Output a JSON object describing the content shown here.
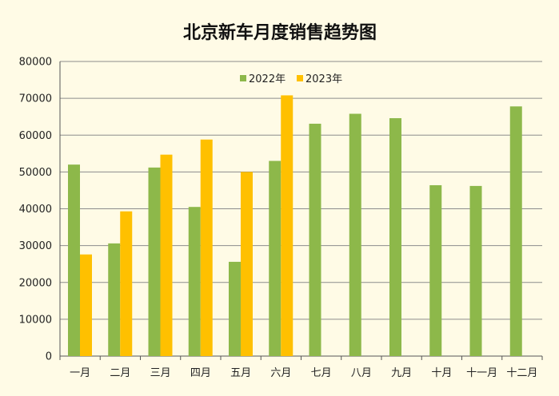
{
  "chart_data": {
    "type": "bar",
    "title": "北京新车月度销售趋势图",
    "xlabel": "",
    "ylabel": "",
    "categories": [
      "一月",
      "二月",
      "三月",
      "四月",
      "五月",
      "六月",
      "七月",
      "八月",
      "九月",
      "十月",
      "十一月",
      "十二月"
    ],
    "series": [
      {
        "name": "2022年",
        "color": "#8db84a",
        "values": [
          52000,
          30600,
          51200,
          40500,
          25600,
          53000,
          63100,
          65800,
          64600,
          46400,
          46200,
          67800
        ]
      },
      {
        "name": "2023年",
        "color": "#ffc000",
        "values": [
          27600,
          39300,
          54700,
          58800,
          50000,
          70800,
          null,
          null,
          null,
          null,
          null,
          null
        ]
      }
    ],
    "ylim": [
      0,
      80000
    ],
    "yticks": [
      0,
      10000,
      20000,
      30000,
      40000,
      50000,
      60000,
      70000,
      80000
    ],
    "grid": true,
    "legend_position": "top-center"
  }
}
